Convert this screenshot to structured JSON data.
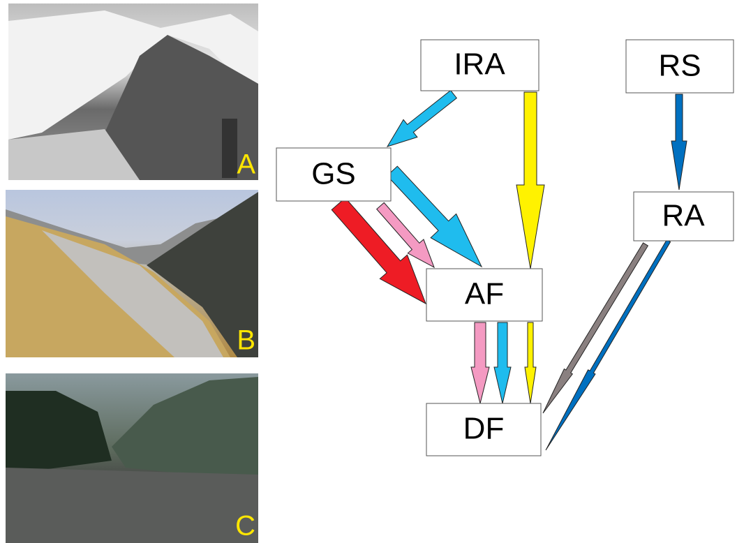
{
  "photos": [
    {
      "label": "A"
    },
    {
      "label": "B"
    },
    {
      "label": "C"
    }
  ],
  "nodes": [
    {
      "label": "IRA"
    },
    {
      "label": "RS"
    },
    {
      "label": "GS"
    },
    {
      "label": "RA"
    },
    {
      "label": "AF"
    },
    {
      "label": "DF"
    }
  ]
}
